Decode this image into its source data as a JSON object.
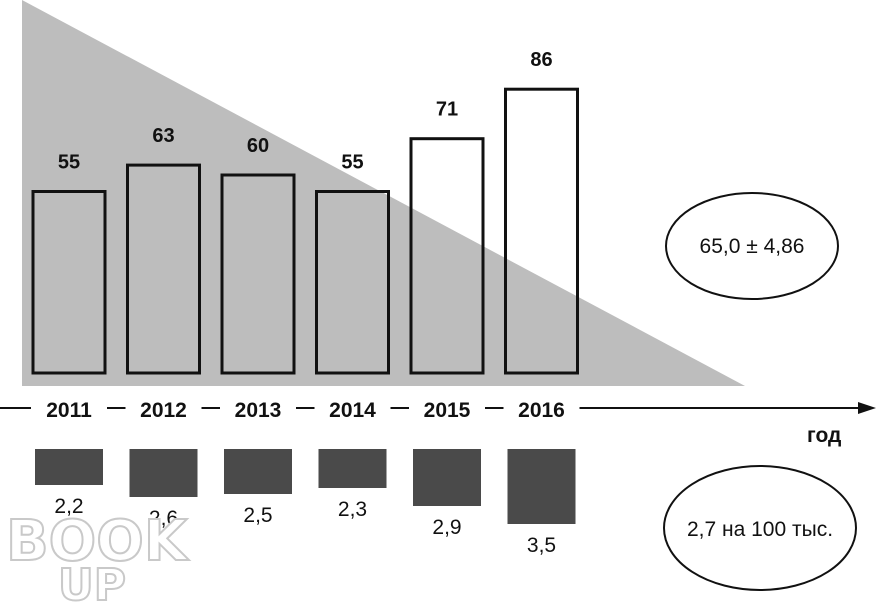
{
  "colors": {
    "triangle": "#bdbdbd",
    "bar_outline": "#111111",
    "lower_bar": "#4a4a4a"
  },
  "chart_data": [
    {
      "type": "bar",
      "categories": [
        "2011",
        "2012",
        "2013",
        "2014",
        "2015",
        "2016"
      ],
      "values": [
        55,
        63,
        60,
        55,
        71,
        86
      ],
      "value_labels": [
        "55",
        "63",
        "60",
        "55",
        "71",
        "86"
      ],
      "xlabel": "год",
      "ylabel": "",
      "title": "",
      "ylim": [
        0,
        90
      ],
      "summary_label": "65,0 ± 4,86",
      "background": "decreasing gray triangle behind bars"
    },
    {
      "type": "bar",
      "categories": [
        "2011",
        "2012",
        "2013",
        "2014",
        "2015",
        "2016"
      ],
      "values": [
        2.2,
        2.6,
        2.5,
        2.3,
        2.9,
        3.5
      ],
      "value_labels": [
        "2,2",
        "2,6",
        "2,5",
        "2,3",
        "2,9",
        "3,5"
      ],
      "orientation": "downward",
      "summary_label": "2,7 на 100 тыс."
    }
  ],
  "watermark": {
    "line1": "BOOK",
    "line2": "UP"
  }
}
